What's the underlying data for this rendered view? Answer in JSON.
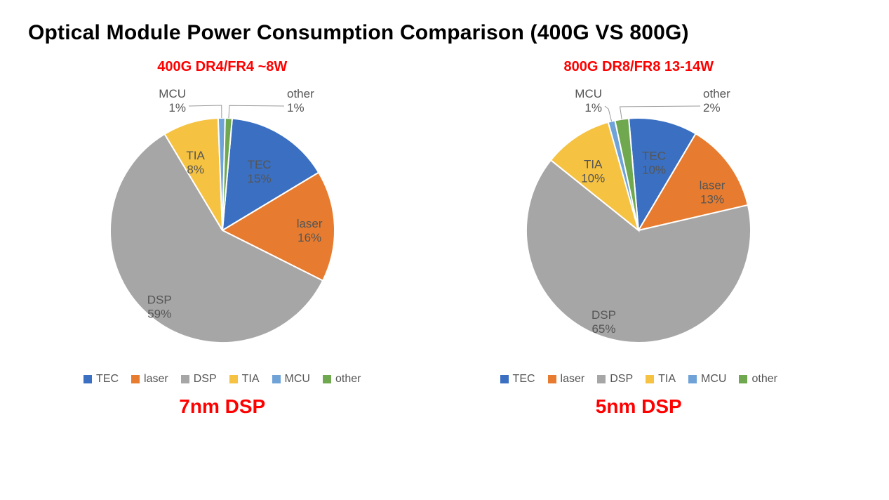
{
  "title": "Optical Module Power Consumption Comparison (400G VS 800G)",
  "title_fontsize": 30,
  "title_fontweight": 700,
  "title_color": "#000000",
  "background_color": "#ffffff",
  "series_colors": {
    "TEC": "#3a6fc2",
    "laser": "#e77c30",
    "DSP": "#a6a6a6",
    "TIA": "#f5c242",
    "MCU": "#6fa3d8",
    "other": "#6fa84f"
  },
  "slice_stroke": "#ffffff",
  "slice_stroke_width": 2,
  "label_color": "#555555",
  "label_fontsize": 17,
  "leader_line_color": "#999999",
  "legend": {
    "order": [
      "TEC",
      "laser",
      "DSP",
      "TIA",
      "MCU",
      "other"
    ],
    "font_color": "#555555",
    "font_size": 16,
    "swatch_size": 12
  },
  "charts": [
    {
      "id": "chart-400g",
      "subtitle": "400G DR4/FR4 ~8W",
      "subtitle_color": "#ff0000",
      "subtitle_fontsize": 20,
      "dsp_label": "7nm DSP",
      "dsp_label_color": "#ff0000",
      "dsp_label_fontsize": 28,
      "type": "pie",
      "radius": 160,
      "start_angle_deg": 5,
      "slice_order": [
        "TEC",
        "laser",
        "DSP",
        "TIA",
        "MCU",
        "other"
      ],
      "values_pct": {
        "TEC": 15,
        "laser": 16,
        "DSP": 59,
        "TIA": 8,
        "MCU": 1,
        "other": 1
      },
      "internal_labels": [
        "TEC",
        "laser",
        "DSP",
        "TIA"
      ],
      "external_labels": [
        "MCU",
        "other"
      ]
    },
    {
      "id": "chart-800g",
      "subtitle": "800G DR8/FR8 13-14W",
      "subtitle_color": "#ff0000",
      "subtitle_fontsize": 20,
      "dsp_label": "5nm DSP",
      "dsp_label_color": "#ff0000",
      "dsp_label_fontsize": 28,
      "type": "pie",
      "radius": 160,
      "start_angle_deg": -5,
      "slice_order": [
        "TEC",
        "laser",
        "DSP",
        "TIA",
        "MCU",
        "other"
      ],
      "values_pct": {
        "TEC": 10,
        "laser": 13,
        "DSP": 65,
        "TIA": 10,
        "MCU": 1,
        "other": 2
      },
      "internal_labels": [
        "TEC",
        "laser",
        "DSP",
        "TIA"
      ],
      "external_labels": [
        "MCU",
        "other"
      ]
    }
  ]
}
